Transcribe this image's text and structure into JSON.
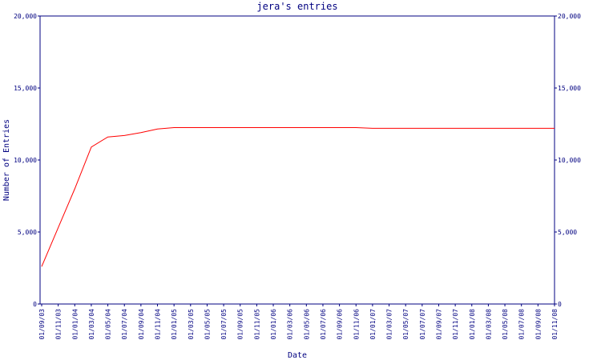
{
  "chart_data": {
    "type": "line",
    "title": "jera's entries",
    "x_label": "Date",
    "y_label": "Number of Entries",
    "categories": [
      "01/09/03",
      "01/11/03",
      "01/01/04",
      "01/03/04",
      "01/05/04",
      "01/07/04",
      "01/09/04",
      "01/11/04",
      "01/01/05",
      "01/03/05",
      "01/05/05",
      "01/07/05",
      "01/09/05",
      "01/11/05",
      "01/01/06",
      "01/03/06",
      "01/05/06",
      "01/07/06",
      "01/09/06",
      "01/11/06",
      "01/01/07",
      "01/03/07",
      "01/05/07",
      "01/07/07",
      "01/09/07",
      "01/11/07",
      "01/01/08",
      "01/03/08",
      "01/05/08",
      "01/07/08",
      "01/09/08",
      "01/11/08"
    ],
    "series": [
      {
        "name": "Entries",
        "color": "#ff0000",
        "values": [
          2600,
          5300,
          8000,
          10900,
          11600,
          11700,
          11900,
          12150,
          12250,
          12250,
          12250,
          12250,
          12250,
          12250,
          12250,
          12250,
          12250,
          12250,
          12250,
          12250,
          12200,
          12200,
          12200,
          12200,
          12200,
          12200,
          12200,
          12200,
          12200,
          12200,
          12200,
          12200
        ]
      }
    ],
    "ylim": [
      0,
      20000
    ],
    "yticks": [
      0,
      {
        "value": 5000,
        "label": "5,000"
      },
      {
        "value": 10000,
        "label": "10,000"
      },
      {
        "value": 15000,
        "label": "15,000"
      },
      {
        "value": 20000,
        "label": "20,000"
      }
    ],
    "y2lim": [
      0,
      20000
    ],
    "y2ticks": [
      0,
      {
        "value": 5000,
        "label": "5,000"
      },
      {
        "value": 10000,
        "label": "10,000"
      },
      {
        "value": 15000,
        "label": "15,000"
      },
      {
        "value": 20000,
        "label": "20,000"
      }
    ],
    "axis_color": "#000080"
  }
}
